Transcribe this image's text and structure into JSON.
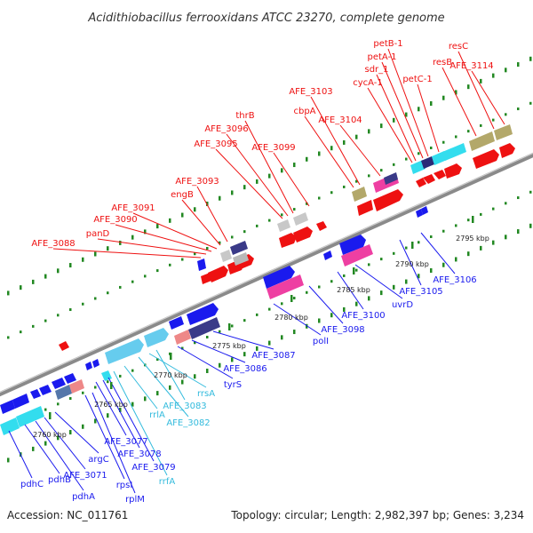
{
  "title": "Acidithiobacillus ferrooxidans ATCC 23270, complete genome",
  "footer": {
    "accession": "Accession: NC_011761",
    "summary": "Topology: circular; Length: 2,982,397 bp; Genes: 3,234"
  },
  "colors": {
    "top_labels": "#ee1111",
    "bottom_labels": "#1a1aee",
    "rna_labels": "#33bbdd",
    "backbone": "#888888",
    "tick": "#228822"
  },
  "scale_ticks": [
    "2760 kbp",
    "2765 kbp",
    "2770 kbp",
    "2775 kbp",
    "2780 kbp",
    "2785 kbp",
    "2790 kbp",
    "2795 kbp"
  ],
  "top_labels": [
    "AFE_3088",
    "panD",
    "AFE_3090",
    "AFE_3091",
    "engB",
    "AFE_3093",
    "AFE_3095",
    "AFE_3096",
    "thrB",
    "AFE_3099",
    "cbpA",
    "AFE_3103",
    "AFE_3104",
    "cycA-1",
    "sdr_1",
    "petA-1",
    "petB-1",
    "petC-1",
    "resB",
    "resC",
    "AFE_3114"
  ],
  "bottom_labels": [
    "pdhC",
    "pdhB",
    "pdhA",
    "AFE_3071",
    "argC",
    "rpsI",
    "rplM",
    "AFE_3077",
    "AFE_3078",
    "AFE_3079",
    "tyrS",
    "AFE_3086",
    "AFE_3087",
    "polI",
    "AFE_3098",
    "AFE_3100",
    "uvrD",
    "AFE_3105",
    "AFE_3106"
  ],
  "rna_labels": [
    "rrfA",
    "rrlA",
    "rrsA",
    "AFE_3083",
    "AFE_3082"
  ]
}
